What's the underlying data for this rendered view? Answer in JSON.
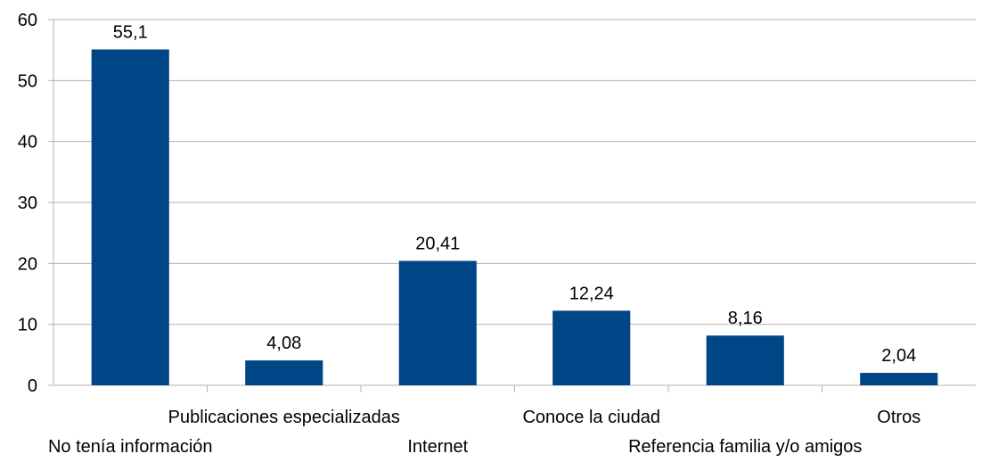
{
  "chart_data": {
    "type": "bar",
    "categories": [
      "No tenía información",
      "Publicaciones especializadas",
      "Internet",
      "Conoce la ciudad",
      "Referencia familia y/o amigos",
      "Otros"
    ],
    "values": [
      55.1,
      4.08,
      20.41,
      12.24,
      8.16,
      2.04
    ],
    "data_labels": [
      "55,1",
      "4,08",
      "20,41",
      "12,24",
      "8,16",
      "2,04"
    ],
    "yticks": [
      "0",
      "10",
      "20",
      "30",
      "40",
      "50",
      "60"
    ],
    "ylim": [
      0,
      60
    ],
    "grid": true,
    "legend": "none",
    "bar_color": "#004586",
    "title": "",
    "xlabel": "",
    "ylabel": ""
  }
}
